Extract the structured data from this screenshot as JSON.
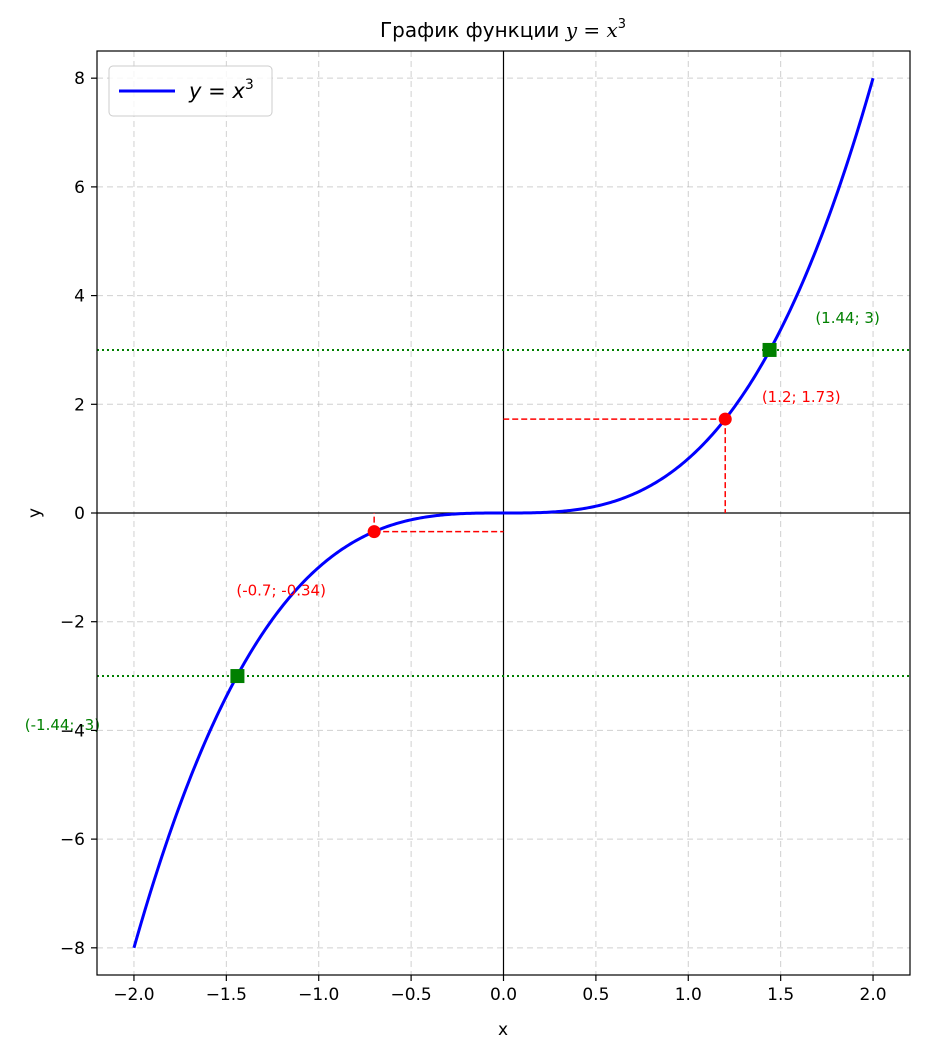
{
  "chart_data": {
    "type": "line",
    "title_prefix": "График функции ",
    "title_math": "y = x",
    "title_exp": "3",
    "xlabel": "x",
    "ylabel": "y",
    "xlim": [
      -2.2,
      2.2
    ],
    "ylim": [
      -8.5,
      8.5
    ],
    "x_ticks": [
      -2.0,
      -1.5,
      -1.0,
      -0.5,
      0.0,
      0.5,
      1.0,
      1.5,
      2.0
    ],
    "x_tick_labels": [
      "−2.0",
      "−1.5",
      "−1.0",
      "−0.5",
      "0.0",
      "0.5",
      "1.0",
      "1.5",
      "2.0"
    ],
    "y_ticks": [
      -8,
      -6,
      -4,
      -2,
      0,
      2,
      4,
      6,
      8
    ],
    "y_tick_labels": [
      "−8",
      "−6",
      "−4",
      "−2",
      "0",
      "2",
      "4",
      "6",
      "8"
    ],
    "grid": true,
    "legend_placement": "top-left",
    "series": [
      {
        "name_math": "y = x",
        "name_exp": "3",
        "function": "x^3",
        "x_range": [
          -2,
          2
        ],
        "color": "#0000ff"
      }
    ],
    "points": [
      {
        "x": -0.7,
        "y": -0.343,
        "label": "(-0.7; -0.34)",
        "color": "#ff0000",
        "marker": "circle"
      },
      {
        "x": 1.2,
        "y": 1.728,
        "label": "(1.2; 1.73)",
        "color": "#ff0000",
        "marker": "circle"
      },
      {
        "x": 1.44,
        "y": 3,
        "label": "(1.44; 3)",
        "color": "#008000",
        "marker": "square"
      },
      {
        "x": -1.44,
        "y": -3,
        "label": "(-1.44; -3)",
        "color": "#008000",
        "marker": "square"
      }
    ],
    "horizontal_lines": [
      {
        "y": 3,
        "color": "#008000",
        "style": "dotted"
      },
      {
        "y": -3,
        "color": "#008000",
        "style": "dotted"
      }
    ]
  }
}
